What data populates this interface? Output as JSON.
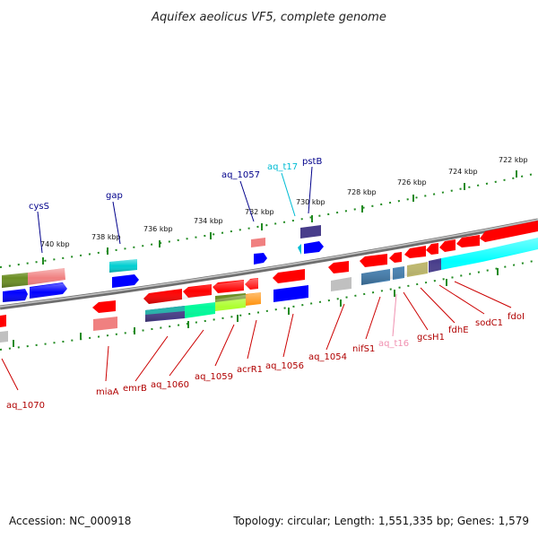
{
  "title": "Aquifex aeolicus VF5, complete genome",
  "footer": {
    "accession": "Accession: NC_000918",
    "topology": "Topology: circular; Length: 1,551,335 bp; Genes: 1,579"
  },
  "ticks": [
    "740 kbp",
    "738 kbp",
    "736 kbp",
    "734 kbp",
    "732 kbp",
    "730 kbp",
    "728 kbp",
    "726 kbp",
    "724 kbp",
    "722 kbp"
  ],
  "top_labels": [
    {
      "text": "cysS",
      "color": "#00008b"
    },
    {
      "text": "gap",
      "color": "#00008b"
    },
    {
      "text": "aq_1057",
      "color": "#00008b"
    },
    {
      "text": "aq_t17",
      "color": "#00bcd4"
    },
    {
      "text": "pstB",
      "color": "#00008b"
    }
  ],
  "bottom_labels": [
    {
      "text": "aq_1070",
      "color": "#b00000"
    },
    {
      "text": "miaA",
      "color": "#b00000"
    },
    {
      "text": "emrB",
      "color": "#b00000"
    },
    {
      "text": "aq_1060",
      "color": "#b00000"
    },
    {
      "text": "aq_1059",
      "color": "#b00000"
    },
    {
      "text": "acrR1",
      "color": "#b00000"
    },
    {
      "text": "aq_1056",
      "color": "#b00000"
    },
    {
      "text": "aq_1054",
      "color": "#b00000"
    },
    {
      "text": "nifS1",
      "color": "#b00000"
    },
    {
      "text": "aq_t16",
      "color": "#f090b0"
    },
    {
      "text": "gcsH1",
      "color": "#b00000"
    },
    {
      "text": "fdhE",
      "color": "#b00000"
    },
    {
      "text": "sodC1",
      "color": "#b00000"
    },
    {
      "text": "fdoI",
      "color": "#b00000"
    }
  ],
  "colors": {
    "forward": "#0000ff",
    "reverse": "#ff0000",
    "backbone": "#808080",
    "tick": "#228b22"
  }
}
